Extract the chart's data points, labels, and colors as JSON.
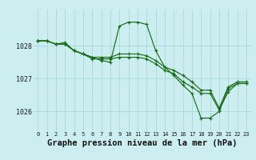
{
  "bg_color": "#cceef0",
  "grid_color": "#aadddd",
  "line_color": "#1a6b1a",
  "marker_color": "#1a6b1a",
  "xlabel": "Graphe pression niveau de la mer (hPa)",
  "xlabel_fontsize": 7.5,
  "xtick_labels": [
    "0",
    "1",
    "2",
    "3",
    "4",
    "5",
    "6",
    "7",
    "8",
    "9",
    "10",
    "11",
    "12",
    "13",
    "14",
    "15",
    "16",
    "17",
    "18",
    "19",
    "20",
    "21",
    "22",
    "23"
  ],
  "ytick_values": [
    1026,
    1027,
    1028
  ],
  "ylim": [
    1025.4,
    1029.1
  ],
  "xlim": [
    -0.5,
    23.5
  ],
  "series": [
    [
      1028.15,
      1028.15,
      1028.05,
      1028.1,
      1027.85,
      1027.75,
      1027.65,
      1027.55,
      1027.5,
      1028.6,
      1028.72,
      1028.72,
      1028.65,
      1027.85,
      1027.35,
      1027.1,
      1026.8,
      1026.55,
      1025.8,
      1025.8,
      1026.0,
      1026.7,
      1026.85,
      1026.85
    ],
    [
      1028.15,
      1028.15,
      1028.05,
      1028.05,
      1027.85,
      1027.75,
      1027.65,
      1027.65,
      1027.65,
      1027.75,
      1027.75,
      1027.75,
      1027.7,
      1027.55,
      1027.35,
      1027.25,
      1027.1,
      1026.9,
      1026.65,
      1026.65,
      1026.1,
      1026.75,
      1026.9,
      1026.9
    ],
    [
      1028.15,
      1028.15,
      1028.05,
      1028.05,
      1027.85,
      1027.75,
      1027.6,
      1027.6,
      1027.6,
      1027.65,
      1027.65,
      1027.65,
      1027.6,
      1027.45,
      1027.25,
      1027.15,
      1026.9,
      1026.75,
      1026.55,
      1026.55,
      1026.05,
      1026.6,
      1026.85,
      1026.85
    ]
  ]
}
